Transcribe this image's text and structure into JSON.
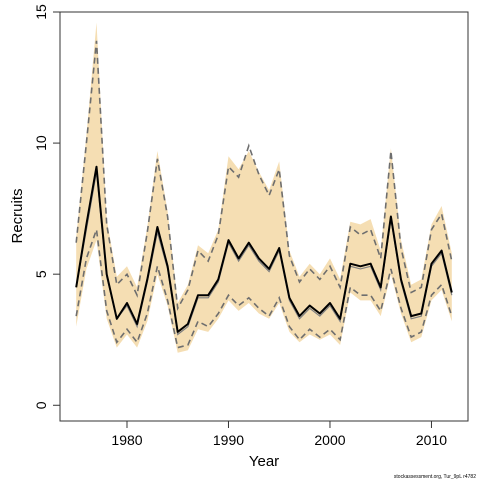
{
  "chart_data": {
    "type": "line",
    "xlabel": "Year",
    "ylabel": "Recruits",
    "xlim": [
      1973.4,
      2013.6
    ],
    "ylim": [
      -0.6,
      15.0
    ],
    "x_ticks": [
      1980,
      1990,
      2000,
      2010
    ],
    "y_ticks": [
      0,
      5,
      10,
      15
    ],
    "grid": false,
    "footnote": "stockassessment.org, Tur_9pL r4782",
    "colors": {
      "band": "#f5deb3",
      "estimate": "#000000",
      "bounds": "#6e6e6e",
      "inner": "#808080"
    },
    "x": [
      1975,
      1976,
      1977,
      1978,
      1979,
      1980,
      1981,
      1982,
      1983,
      1984,
      1985,
      1986,
      1987,
      1988,
      1989,
      1990,
      1991,
      1992,
      1993,
      1994,
      1995,
      1996,
      1997,
      1998,
      1999,
      2000,
      2001,
      2002,
      2003,
      2004,
      2005,
      2006,
      2007,
      2008,
      2009,
      2010,
      2011,
      2012
    ],
    "series": [
      {
        "role": "estimate",
        "values": [
          4.5,
          6.9,
          9.1,
          5.0,
          3.3,
          3.9,
          3.1,
          4.8,
          6.8,
          5.3,
          2.8,
          3.1,
          4.2,
          4.2,
          4.8,
          6.3,
          5.6,
          6.2,
          5.6,
          5.2,
          6.0,
          4.1,
          3.4,
          3.8,
          3.5,
          3.9,
          3.3,
          5.4,
          5.3,
          5.4,
          4.5,
          7.2,
          4.8,
          3.4,
          3.5,
          5.4,
          5.9,
          4.3
        ]
      },
      {
        "role": "estimate-inner",
        "values": [
          4.5,
          6.7,
          8.9,
          4.9,
          3.3,
          3.8,
          3.0,
          4.7,
          6.6,
          5.2,
          2.7,
          3.0,
          4.1,
          4.1,
          4.7,
          6.2,
          5.5,
          6.1,
          5.5,
          5.1,
          5.9,
          4.0,
          3.3,
          3.7,
          3.4,
          3.8,
          3.2,
          5.3,
          5.2,
          5.3,
          4.4,
          7.1,
          4.7,
          3.3,
          3.4,
          5.3,
          5.8,
          4.2
        ]
      },
      {
        "role": "upper",
        "values": [
          6.2,
          10.0,
          13.9,
          6.9,
          4.6,
          5.0,
          4.2,
          6.6,
          9.4,
          7.2,
          3.7,
          4.4,
          5.9,
          5.5,
          6.5,
          9.1,
          8.7,
          9.9,
          8.8,
          8.0,
          9.0,
          5.7,
          4.7,
          5.2,
          4.8,
          5.3,
          4.5,
          6.8,
          6.5,
          6.7,
          5.6,
          9.7,
          6.0,
          4.3,
          4.5,
          6.7,
          7.3,
          5.5
        ]
      },
      {
        "role": "lower",
        "values": [
          3.4,
          5.6,
          6.7,
          3.6,
          2.4,
          2.9,
          2.4,
          3.5,
          5.3,
          4.0,
          2.2,
          2.3,
          3.2,
          3.0,
          3.5,
          4.2,
          3.8,
          4.1,
          3.7,
          3.4,
          4.1,
          3.0,
          2.5,
          2.9,
          2.6,
          2.9,
          2.5,
          4.5,
          4.2,
          4.2,
          3.6,
          5.2,
          3.7,
          2.6,
          2.8,
          4.2,
          4.6,
          3.4
        ]
      },
      {
        "role": "band-upper",
        "values": [
          6.4,
          10.3,
          14.6,
          7.1,
          4.9,
          5.3,
          4.5,
          6.8,
          9.7,
          7.4,
          3.9,
          4.6,
          6.1,
          5.8,
          6.7,
          9.5,
          9.0,
          9.7,
          8.9,
          8.2,
          9.3,
          5.9,
          4.9,
          5.4,
          5.0,
          5.6,
          4.8,
          7.0,
          6.9,
          7.1,
          5.9,
          9.8,
          6.3,
          4.6,
          4.8,
          6.9,
          7.6,
          5.8
        ]
      },
      {
        "role": "band-lower",
        "values": [
          3.0,
          5.2,
          6.3,
          3.3,
          2.2,
          2.7,
          2.2,
          3.2,
          5.0,
          3.8,
          2.0,
          2.1,
          2.9,
          2.8,
          3.3,
          4.0,
          3.6,
          3.9,
          3.5,
          3.3,
          3.9,
          2.8,
          2.4,
          2.7,
          2.5,
          2.7,
          2.3,
          4.3,
          4.0,
          4.0,
          3.4,
          5.0,
          3.5,
          2.4,
          2.6,
          4.0,
          4.4,
          3.2
        ]
      }
    ]
  }
}
